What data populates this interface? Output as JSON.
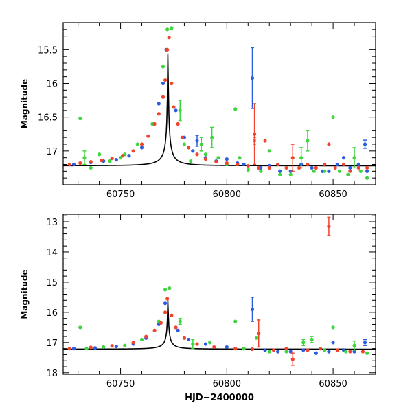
{
  "chart_data": [
    {
      "type": "scatter",
      "panel": "top",
      "xlabel": "",
      "ylabel": "Magnitude",
      "xlim": [
        60723,
        60870
      ],
      "ylim": [
        17.5,
        15.1
      ],
      "y_inverted": true,
      "x_ticks": [
        60750,
        60800,
        60850
      ],
      "x_tick_labels": [
        "60750",
        "60800",
        "60850"
      ],
      "y_ticks": [
        15.5,
        16,
        16.5,
        17
      ],
      "y_tick_labels": [
        "15.5",
        "16",
        "16.5",
        "17"
      ],
      "grid": false,
      "model_curve": {
        "peak_x": 60772.3,
        "peak_y": 15.25,
        "baseline": 17.22,
        "width": 12.0,
        "color": "#000000"
      },
      "series": [
        {
          "color": "#2a5de0",
          "points": [
            [
              60728,
              17.2,
              0
            ],
            [
              60736,
              17.17,
              0
            ],
            [
              60742,
              17.15,
              0
            ],
            [
              60748,
              17.13,
              0
            ],
            [
              60754,
              17.07,
              0
            ],
            [
              60760,
              16.95,
              0
            ],
            [
              60765,
              16.6,
              0
            ],
            [
              60768,
              16.3,
              0
            ],
            [
              60770,
              16.0,
              0
            ],
            [
              60771.5,
              15.5,
              0
            ],
            [
              60776,
              16.4,
              0
            ],
            [
              60780,
              16.8,
              0
            ],
            [
              60784,
              17.0,
              0
            ],
            [
              60786,
              16.85,
              0.08
            ],
            [
              60790,
              17.1,
              0
            ],
            [
              60795,
              17.15,
              0
            ],
            [
              60800,
              17.12,
              0
            ],
            [
              60805,
              17.18,
              0
            ],
            [
              60808,
              17.2,
              0
            ],
            [
              60812,
              15.92,
              0.45
            ],
            [
              60816,
              17.25,
              0
            ],
            [
              60820,
              17.22,
              0
            ],
            [
              60825,
              17.3,
              0
            ],
            [
              60830,
              17.3,
              0
            ],
            [
              60835,
              17.2,
              0
            ],
            [
              60840,
              17.25,
              0
            ],
            [
              60845,
              17.3,
              0
            ],
            [
              60848,
              17.3,
              0
            ],
            [
              60852,
              17.2,
              0
            ],
            [
              60855,
              17.1,
              0
            ],
            [
              60858,
              17.25,
              0
            ],
            [
              60862,
              17.2,
              0
            ],
            [
              60865,
              16.9,
              0.06
            ],
            [
              60866,
              17.3,
              0
            ]
          ]
        },
        {
          "color": "#3dd63d",
          "points": [
            [
              60731,
              16.52,
              0
            ],
            [
              60733,
              17.1,
              0.1
            ],
            [
              60736,
              17.25,
              0
            ],
            [
              60740,
              17.05,
              0
            ],
            [
              60745,
              17.15,
              0
            ],
            [
              60750,
              17.1,
              0
            ],
            [
              60752,
              17.05,
              0
            ],
            [
              60758,
              16.9,
              0
            ],
            [
              60765,
              16.6,
              0
            ],
            [
              60770,
              15.75,
              0
            ],
            [
              60772,
              15.2,
              0
            ],
            [
              60774,
              15.18,
              0
            ],
            [
              60778,
              16.4,
              0.15
            ],
            [
              60780,
              16.9,
              0
            ],
            [
              60783,
              17.15,
              0
            ],
            [
              60788,
              16.9,
              0.1
            ],
            [
              60790,
              17.05,
              0
            ],
            [
              60793,
              16.8,
              0.15
            ],
            [
              60796,
              17.1,
              0
            ],
            [
              60800,
              17.2,
              0
            ],
            [
              60804,
              16.38,
              0
            ],
            [
              60806,
              17.1,
              0
            ],
            [
              60810,
              17.28,
              0
            ],
            [
              60813,
              16.85,
              0.05
            ],
            [
              60816,
              17.3,
              0
            ],
            [
              60820,
              17.0,
              0
            ],
            [
              60825,
              17.35,
              0
            ],
            [
              60830,
              17.35,
              0
            ],
            [
              60835,
              17.1,
              0.15
            ],
            [
              60838,
              16.85,
              0.15
            ],
            [
              60841,
              17.3,
              0
            ],
            [
              60846,
              17.3,
              0
            ],
            [
              60850,
              16.5,
              0
            ],
            [
              60853,
              17.3,
              0
            ],
            [
              60857,
              17.35,
              0
            ],
            [
              60860,
              17.1,
              0.15
            ],
            [
              60863,
              17.3,
              0
            ],
            [
              60866,
              17.4,
              0
            ]
          ]
        },
        {
          "color": "#f2432d",
          "points": [
            [
              60726,
              17.2,
              0
            ],
            [
              60731,
              17.18,
              0
            ],
            [
              60736,
              17.16,
              0
            ],
            [
              60741,
              17.14,
              0
            ],
            [
              60746,
              17.11,
              0
            ],
            [
              60751,
              17.07,
              0
            ],
            [
              60756,
              17.0,
              0
            ],
            [
              60760,
              16.9,
              0
            ],
            [
              60763,
              16.78,
              0
            ],
            [
              60766,
              16.6,
              0
            ],
            [
              60768,
              16.45,
              0
            ],
            [
              60770,
              16.2,
              0
            ],
            [
              60771,
              15.95,
              0
            ],
            [
              60772,
              15.5,
              0
            ],
            [
              60772.8,
              15.32,
              0
            ],
            [
              60774,
              16.0,
              0
            ],
            [
              60775,
              16.35,
              0
            ],
            [
              60777,
              16.6,
              0
            ],
            [
              60779,
              16.8,
              0
            ],
            [
              60782,
              16.95,
              0
            ],
            [
              60786,
              17.05,
              0
            ],
            [
              60790,
              17.12,
              0
            ],
            [
              60795,
              17.16,
              0
            ],
            [
              60800,
              17.18,
              0
            ],
            [
              60805,
              17.2,
              0
            ],
            [
              60810,
              17.22,
              0
            ],
            [
              60813,
              16.75,
              0.45
            ],
            [
              60815,
              17.25,
              0
            ],
            [
              60818,
              16.85,
              0
            ],
            [
              60820,
              17.25,
              0
            ],
            [
              60824,
              17.2,
              0
            ],
            [
              60828,
              17.25,
              0
            ],
            [
              60831,
              17.1,
              0.2
            ],
            [
              60834,
              17.25,
              0
            ],
            [
              60838,
              17.2,
              0
            ],
            [
              60842,
              17.25,
              0
            ],
            [
              60846,
              17.2,
              0
            ],
            [
              60848,
              16.9,
              0
            ],
            [
              60851,
              17.25,
              0
            ],
            [
              60855,
              17.2,
              0
            ],
            [
              60858,
              17.3,
              0
            ],
            [
              60862,
              17.25,
              0
            ],
            [
              60866,
              17.25,
              0
            ]
          ]
        }
      ]
    },
    {
      "type": "scatter",
      "panel": "bottom",
      "xlabel": "HJD−2400000",
      "ylabel": "Magnitude",
      "xlim": [
        60723,
        60870
      ],
      "ylim": [
        18.05,
        12.75
      ],
      "y_inverted": true,
      "x_ticks": [
        60750,
        60800,
        60850
      ],
      "x_tick_labels": [
        "60750",
        "60800",
        "60850"
      ],
      "y_ticks": [
        13,
        14,
        15,
        16,
        17,
        18
      ],
      "y_tick_labels": [
        "13",
        "14",
        "15",
        "16",
        "17",
        "18"
      ],
      "grid": false,
      "model_curve": {
        "peak_x": 60772.3,
        "peak_y": 15.3,
        "baseline": 17.22,
        "width": 12.0,
        "color": "#000000"
      },
      "series": [
        {
          "color": "#2a5de0",
          "points": [
            [
              60728,
              17.2,
              0
            ],
            [
              60738,
              17.18,
              0
            ],
            [
              60748,
              17.13,
              0
            ],
            [
              60756,
              17.05,
              0
            ],
            [
              60762,
              16.85,
              0
            ],
            [
              60768,
              16.4,
              0
            ],
            [
              60771,
              15.7,
              0
            ],
            [
              60777,
              16.6,
              0
            ],
            [
              60782,
              16.9,
              0
            ],
            [
              60790,
              17.05,
              0
            ],
            [
              60800,
              17.15,
              0
            ],
            [
              60808,
              17.2,
              0
            ],
            [
              60812,
              15.9,
              0.4
            ],
            [
              60818,
              17.25,
              0
            ],
            [
              60824,
              17.3,
              0
            ],
            [
              60830,
              17.3,
              0
            ],
            [
              60836,
              17.25,
              0
            ],
            [
              60842,
              17.35,
              0
            ],
            [
              60848,
              17.3,
              0
            ],
            [
              60850,
              17.0,
              0
            ],
            [
              60855,
              17.25,
              0
            ],
            [
              60860,
              17.3,
              0
            ],
            [
              60865,
              17.0,
              0.1
            ]
          ]
        },
        {
          "color": "#3dd63d",
          "points": [
            [
              60731,
              16.5,
              0
            ],
            [
              60734,
              17.2,
              0
            ],
            [
              60742,
              17.15,
              0
            ],
            [
              60752,
              17.1,
              0
            ],
            [
              60760,
              16.9,
              0
            ],
            [
              60768,
              16.3,
              0
            ],
            [
              60771,
              15.25,
              0
            ],
            [
              60773,
              15.2,
              0
            ],
            [
              60778,
              16.3,
              0.1
            ],
            [
              60784,
              17.05,
              0.15
            ],
            [
              60792,
              17.0,
              0
            ],
            [
              60804,
              16.3,
              0
            ],
            [
              60808,
              17.2,
              0
            ],
            [
              60814,
              16.85,
              0
            ],
            [
              60820,
              17.3,
              0
            ],
            [
              60828,
              17.3,
              0
            ],
            [
              60836,
              17.0,
              0.1
            ],
            [
              60840,
              16.9,
              0.1
            ],
            [
              60846,
              17.25,
              0
            ],
            [
              60850,
              16.5,
              0
            ],
            [
              60856,
              17.3,
              0
            ],
            [
              60860,
              17.1,
              0.15
            ],
            [
              60866,
              17.35,
              0
            ]
          ]
        },
        {
          "color": "#f2432d",
          "points": [
            [
              60726,
              17.2,
              0
            ],
            [
              60736,
              17.16,
              0
            ],
            [
              60746,
              17.11,
              0
            ],
            [
              60756,
              17.0,
              0
            ],
            [
              60762,
              16.8,
              0
            ],
            [
              60766,
              16.6,
              0
            ],
            [
              60769,
              16.35,
              0
            ],
            [
              60771,
              16.0,
              0
            ],
            [
              60772,
              15.55,
              0
            ],
            [
              60774,
              16.1,
              0
            ],
            [
              60776,
              16.5,
              0
            ],
            [
              60780,
              16.85,
              0
            ],
            [
              60786,
              17.05,
              0
            ],
            [
              60794,
              17.15,
              0
            ],
            [
              60804,
              17.2,
              0
            ],
            [
              60812,
              17.22,
              0
            ],
            [
              60815,
              16.7,
              0.45
            ],
            [
              60822,
              17.25,
              0
            ],
            [
              60828,
              17.2,
              0
            ],
            [
              60831,
              17.55,
              0.2
            ],
            [
              60838,
              17.25,
              0
            ],
            [
              60844,
              17.2,
              0
            ],
            [
              60848,
              13.15,
              0.3
            ],
            [
              60852,
              17.25,
              0
            ],
            [
              60858,
              17.3,
              0
            ],
            [
              60864,
              17.3,
              0
            ]
          ]
        }
      ]
    }
  ]
}
